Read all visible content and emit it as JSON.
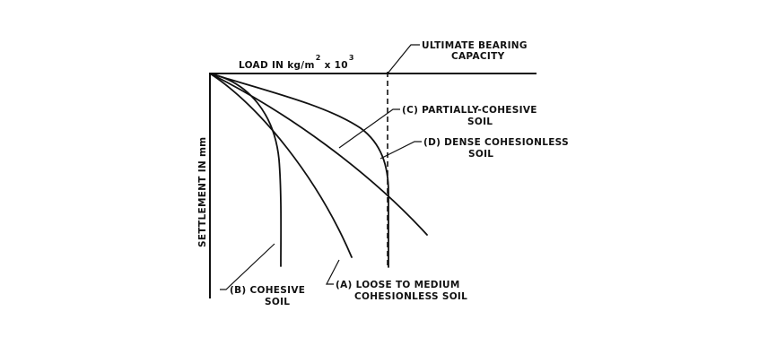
{
  "axes": {
    "x_label": "LOAD IN kg/m",
    "x_label_sup1": "2",
    "x_label_mid": "x 10",
    "x_label_sup2": "3",
    "y_label": "SETTLEMENT IN mm"
  },
  "annotations": {
    "ultimate": [
      "ULTIMATE BEARING",
      "CAPACITY"
    ],
    "curve_a": [
      "(A) LOOSE TO MEDIUM",
      "COHESIONLESS SOIL"
    ],
    "curve_b": [
      "(B) COHESIVE",
      "SOIL"
    ],
    "curve_c": [
      "(C) PARTIALLY-COHESIVE",
      "SOIL"
    ],
    "curve_d": [
      "(D) DENSE COHESIONLESS",
      "SOIL"
    ]
  }
}
